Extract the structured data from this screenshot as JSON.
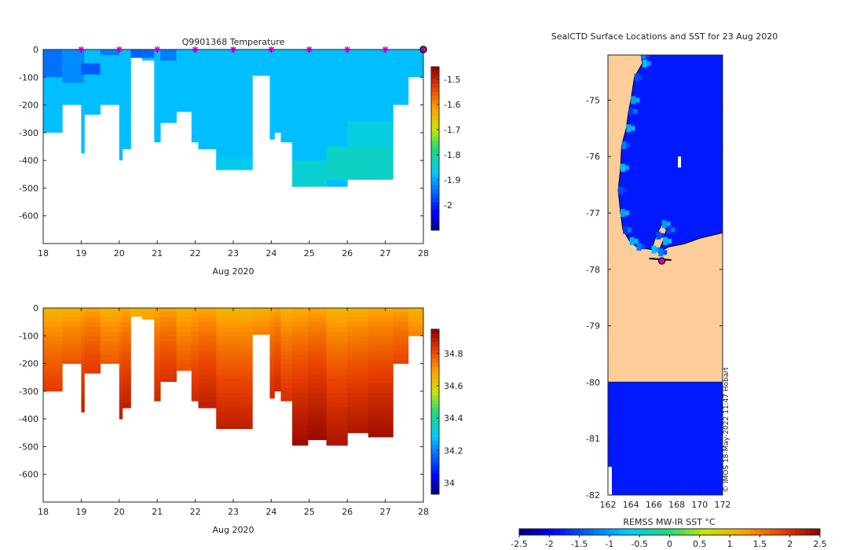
{
  "figure": {
    "footer_stamp": "© IMOS 18-May-2022 11:47 Hobart"
  },
  "chart_data": [
    {
      "id": "temperature",
      "type": "heatmap",
      "title": "Q9901368  Temperature",
      "xlabel": "Aug 2020",
      "x_ticks": [
        "18",
        "19",
        "20",
        "21",
        "22",
        "23",
        "24",
        "25",
        "26",
        "27",
        "28"
      ],
      "xlim": [
        18,
        28
      ],
      "ylim": [
        -700,
        0
      ],
      "y_ticks": [
        0,
        -100,
        -200,
        -300,
        -400,
        -500,
        -600
      ],
      "y_tick_labels": [
        "0",
        "-100",
        "-200",
        "-300",
        "-400",
        "-500",
        "-600"
      ],
      "colorbar": {
        "min": -2.1,
        "max": -1.45,
        "ticks": [
          -2,
          -1.9,
          -1.8,
          -1.7,
          -1.6,
          -1.5
        ],
        "tick_labels": [
          "-2",
          "-1.9",
          "-1.8",
          "-1.7",
          "-1.6",
          "-1.5"
        ]
      },
      "base_value": -1.88,
      "profiles": [
        {
          "t": 18.0,
          "depth": 300
        },
        {
          "t": 18.5,
          "depth": 200
        },
        {
          "t": 19.0,
          "depth": 375
        },
        {
          "t": 19.08,
          "depth": 235
        },
        {
          "t": 19.5,
          "depth": 200
        },
        {
          "t": 20.0,
          "depth": 400
        },
        {
          "t": 20.08,
          "depth": 360
        },
        {
          "t": 20.3,
          "depth": 30
        },
        {
          "t": 20.6,
          "depth": 40
        },
        {
          "t": 20.92,
          "depth": 335
        },
        {
          "t": 21.08,
          "depth": 265
        },
        {
          "t": 21.5,
          "depth": 225
        },
        {
          "t": 21.9,
          "depth": 335
        },
        {
          "t": 22.08,
          "depth": 360
        },
        {
          "t": 22.55,
          "depth": 435
        },
        {
          "t": 23.5,
          "depth": 95
        },
        {
          "t": 23.96,
          "depth": 325
        },
        {
          "t": 24.08,
          "depth": 300
        },
        {
          "t": 24.25,
          "depth": 335
        },
        {
          "t": 24.55,
          "depth": 495
        },
        {
          "t": 24.96,
          "depth": 475
        },
        {
          "t": 25.45,
          "depth": 495
        },
        {
          "t": 26.0,
          "depth": 450
        },
        {
          "t": 26.55,
          "depth": 465
        },
        {
          "t": 27.2,
          "depth": 200
        },
        {
          "t": 27.6,
          "depth": 100
        },
        {
          "t": 28.05,
          "depth": 0
        }
      ],
      "cells": [
        {
          "t0": 18.0,
          "t1": 18.5,
          "d0": 0,
          "d1": 100,
          "v": -1.94
        },
        {
          "t0": 18.5,
          "t1": 19.08,
          "d0": 0,
          "d1": 120,
          "v": -1.92
        },
        {
          "t0": 19.0,
          "t1": 19.5,
          "d0": 50,
          "d1": 90,
          "v": -1.96
        },
        {
          "t0": 19.5,
          "t1": 20.0,
          "d0": 0,
          "d1": 20,
          "v": -1.93
        },
        {
          "t0": 20.3,
          "t1": 20.92,
          "d0": 0,
          "d1": 30,
          "v": -1.95
        },
        {
          "t0": 21.08,
          "t1": 21.5,
          "d0": 0,
          "d1": 40,
          "v": -1.93
        },
        {
          "t0": 22.55,
          "t1": 23.5,
          "d0": 390,
          "d1": 435,
          "v": -1.86
        },
        {
          "t0": 24.55,
          "t1": 25.45,
          "d0": 400,
          "d1": 495,
          "v": -1.84
        },
        {
          "t0": 25.45,
          "t1": 27.2,
          "d0": 350,
          "d1": 470,
          "v": -1.83
        },
        {
          "t0": 26.0,
          "t1": 27.2,
          "d0": 260,
          "d1": 350,
          "v": -1.85
        }
      ],
      "markers": [
        {
          "t": 19.0,
          "kind": "profile"
        },
        {
          "t": 20.0,
          "kind": "profile"
        },
        {
          "t": 21.0,
          "kind": "profile"
        },
        {
          "t": 22.0,
          "kind": "profile"
        },
        {
          "t": 23.0,
          "kind": "profile"
        },
        {
          "t": 24.0,
          "kind": "profile"
        },
        {
          "t": 25.0,
          "kind": "profile"
        },
        {
          "t": 26.0,
          "kind": "profile"
        },
        {
          "t": 27.0,
          "kind": "profile"
        },
        {
          "t": 28.0,
          "kind": "latest"
        }
      ]
    },
    {
      "id": "salinity",
      "type": "heatmap",
      "title": "",
      "xlabel": "Aug 2020",
      "x_ticks": [
        "18",
        "19",
        "20",
        "21",
        "22",
        "23",
        "24",
        "25",
        "26",
        "27",
        "28"
      ],
      "xlim": [
        18,
        28
      ],
      "ylim": [
        -700,
        0
      ],
      "y_ticks": [
        0,
        -100,
        -200,
        -300,
        -400,
        -500,
        -600
      ],
      "y_tick_labels": [
        "0",
        "-100",
        "-200",
        "-300",
        "-400",
        "-500",
        "-600"
      ],
      "colorbar": {
        "min": 33.93,
        "max": 34.95,
        "ticks": [
          34,
          34.2,
          34.4,
          34.6,
          34.8
        ],
        "tick_labels": [
          "34",
          "34.2",
          "34.4",
          "34.6",
          "34.8"
        ]
      },
      "surface_value": 34.66,
      "bottom_value": 34.93,
      "profiles": [
        {
          "t": 18.0,
          "depth": 300
        },
        {
          "t": 18.5,
          "depth": 200
        },
        {
          "t": 19.0,
          "depth": 375
        },
        {
          "t": 19.08,
          "depth": 235
        },
        {
          "t": 19.5,
          "depth": 200
        },
        {
          "t": 20.0,
          "depth": 400
        },
        {
          "t": 20.08,
          "depth": 360
        },
        {
          "t": 20.3,
          "depth": 30
        },
        {
          "t": 20.6,
          "depth": 40
        },
        {
          "t": 20.92,
          "depth": 335
        },
        {
          "t": 21.08,
          "depth": 265
        },
        {
          "t": 21.5,
          "depth": 225
        },
        {
          "t": 21.9,
          "depth": 335
        },
        {
          "t": 22.08,
          "depth": 360
        },
        {
          "t": 22.55,
          "depth": 435
        },
        {
          "t": 23.5,
          "depth": 95
        },
        {
          "t": 23.96,
          "depth": 325
        },
        {
          "t": 24.08,
          "depth": 300
        },
        {
          "t": 24.25,
          "depth": 335
        },
        {
          "t": 24.55,
          "depth": 495
        },
        {
          "t": 24.96,
          "depth": 475
        },
        {
          "t": 25.45,
          "depth": 495
        },
        {
          "t": 26.0,
          "depth": 450
        },
        {
          "t": 26.55,
          "depth": 465
        },
        {
          "t": 27.2,
          "depth": 200
        },
        {
          "t": 27.6,
          "depth": 100
        },
        {
          "t": 28.05,
          "depth": 0
        }
      ]
    },
    {
      "id": "sst_map",
      "type": "heatmap",
      "title": "SealCTD Surface Locations and SST for 23 Aug 2020",
      "xlabel": "",
      "lon_range": [
        162,
        172
      ],
      "lat_range": [
        -82,
        -74.2
      ],
      "x_ticks": [
        162,
        164,
        166,
        168,
        170,
        172
      ],
      "x_tick_labels": [
        "162",
        "164",
        "166",
        "168",
        "170",
        "172"
      ],
      "y_ticks": [
        -75,
        -76,
        -77,
        -78,
        -79,
        -80,
        -81,
        -82
      ],
      "y_tick_labels": [
        "-75",
        "-76",
        "-77",
        "-78",
        "-79",
        "-80",
        "-81",
        "-82"
      ],
      "colorbar": {
        "label": "REMSS MW-IR SST °C",
        "min": -2.5,
        "max": 2.5,
        "ticks": [
          -2.5,
          -2,
          -1.5,
          -1,
          -0.5,
          0,
          0.5,
          1,
          1.5,
          2,
          2.5
        ],
        "tick_labels": [
          "-2.5",
          "-2",
          "-1.5",
          "-1",
          "-0.5",
          "0",
          "0.5",
          "1",
          "1.5",
          "2",
          "2.5"
        ]
      },
      "ocean_value": -1.8,
      "land_color": "#fccd99",
      "coast_values": [
        -1.2,
        -0.8,
        -1.5,
        -1.0,
        -1.6,
        -0.9
      ],
      "coast_lon": [
        [
          164.9,
          -74.2
        ],
        [
          165.0,
          -74.35
        ],
        [
          164.3,
          -74.6
        ],
        [
          164.0,
          -75.0
        ],
        [
          163.8,
          -75.2
        ],
        [
          163.6,
          -75.5
        ],
        [
          163.2,
          -75.8
        ],
        [
          163.1,
          -76.2
        ],
        [
          162.9,
          -76.6
        ],
        [
          163.1,
          -77.0
        ],
        [
          163.3,
          -77.3
        ],
        [
          163.9,
          -77.5
        ],
        [
          164.5,
          -77.6
        ],
        [
          165.8,
          -77.65
        ],
        [
          166.2,
          -77.4
        ],
        [
          166.7,
          -77.2
        ],
        [
          167.1,
          -77.3
        ],
        [
          166.8,
          -77.5
        ],
        [
          166.4,
          -77.7
        ]
      ],
      "ice_edge": [
        [
          166.4,
          -77.7
        ],
        [
          167.3,
          -77.6
        ],
        [
          168.6,
          -77.55
        ],
        [
          170.0,
          -77.45
        ],
        [
          172.0,
          -77.35
        ]
      ],
      "south_ocean_from_lat": -80,
      "location": {
        "lon": 166.7,
        "lat": -77.85
      }
    }
  ]
}
